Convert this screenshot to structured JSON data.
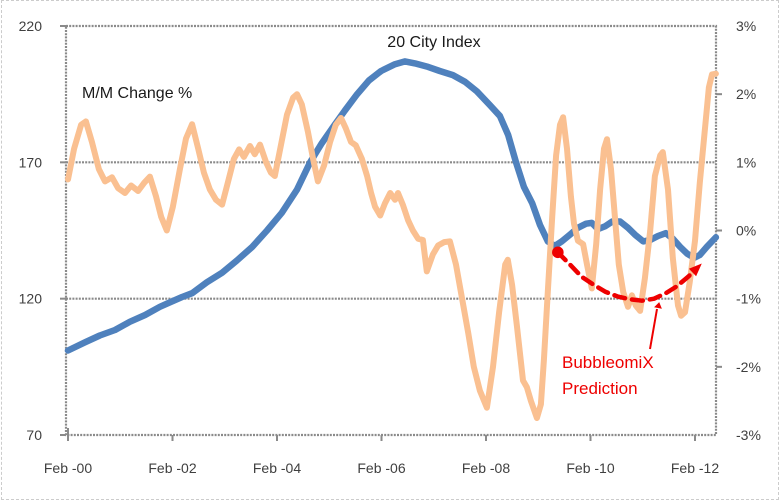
{
  "chart_data": {
    "type": "line",
    "description": "Dual-axis line chart of home price 20 City Index (left axis) and its month-over-month percent change (right axis) from Feb 2000 to mid 2012, with a red dashed BubbleomiX Prediction curve",
    "in_plot_labels": {
      "index_label": "20 City Index",
      "mm_label": "M/M Change %"
    },
    "x_axis": {
      "unit": "months since Feb 2000",
      "tick_labels": [
        "Feb -00",
        "Feb -02",
        "Feb -04",
        "Feb -06",
        "Feb -08",
        "Feb -10",
        "Feb -12"
      ],
      "tick_months": [
        0,
        24,
        48,
        72,
        96,
        120,
        144
      ]
    },
    "left_axis": {
      "min": 70,
      "max": 220,
      "tick_values": [
        220,
        170,
        120,
        70
      ],
      "tick_labels": [
        "220",
        "170",
        "120",
        "70"
      ]
    },
    "right_axis": {
      "min": -3,
      "max": 3,
      "tick_values": [
        3,
        2,
        1,
        0,
        -1,
        -2,
        -3
      ],
      "tick_labels": [
        "3%",
        "2%",
        "1%",
        "0%",
        "-1%",
        "-2%",
        "-3%"
      ],
      "gridlines": [
        1,
        -1
      ],
      "minor_ticks": [
        2,
        0,
        -2
      ]
    },
    "grid_color": "#8a8a8a",
    "label_color": "#3f3f3f",
    "title_color": "#1a1a1a",
    "series": [
      {
        "name": "20 City Index",
        "axis": "left",
        "color": "#4f81bd",
        "width": 6.5,
        "points": [
          [
            0,
            101
          ],
          [
            3.9,
            104
          ],
          [
            7.3,
            106.5
          ],
          [
            10.8,
            108.5
          ],
          [
            14.2,
            111.5
          ],
          [
            17.7,
            114
          ],
          [
            21.1,
            117
          ],
          [
            23.9,
            119
          ],
          [
            26.2,
            120.6
          ],
          [
            28.5,
            122
          ],
          [
            31.9,
            126
          ],
          [
            35.4,
            129.5
          ],
          [
            38.8,
            134
          ],
          [
            42.3,
            139
          ],
          [
            45.7,
            145
          ],
          [
            49.1,
            151.5
          ],
          [
            52.6,
            160
          ],
          [
            55.6,
            170
          ],
          [
            58.3,
            177
          ],
          [
            60.9,
            183
          ],
          [
            63.6,
            189
          ],
          [
            66.4,
            195
          ],
          [
            69.1,
            200
          ],
          [
            71.9,
            203.5
          ],
          [
            75.1,
            206
          ],
          [
            77.4,
            207
          ],
          [
            79.7,
            206.3
          ],
          [
            82.7,
            205
          ],
          [
            85.4,
            203.5
          ],
          [
            88.4,
            202
          ],
          [
            91.2,
            199.5
          ],
          [
            93.9,
            196
          ],
          [
            96.9,
            191
          ],
          [
            99.2,
            187
          ],
          [
            101.1,
            180
          ],
          [
            102.9,
            170
          ],
          [
            104.7,
            161
          ],
          [
            106.6,
            155
          ],
          [
            108.4,
            147
          ],
          [
            110.2,
            141
          ],
          [
            111.8,
            139.3
          ],
          [
            113.4,
            141
          ],
          [
            115.3,
            143.5
          ],
          [
            117.1,
            146
          ],
          [
            119,
            147.5
          ],
          [
            120.3,
            147.8
          ],
          [
            121.7,
            145.5
          ],
          [
            123.3,
            146.5
          ],
          [
            125,
            148.3
          ],
          [
            126.8,
            148.3
          ],
          [
            128.6,
            146
          ],
          [
            130.2,
            143.5
          ],
          [
            132.1,
            141
          ],
          [
            133.7,
            141.5
          ],
          [
            135.5,
            143
          ],
          [
            137.3,
            144
          ],
          [
            138.9,
            142
          ],
          [
            140.6,
            139
          ],
          [
            142.2,
            136.5
          ],
          [
            143.8,
            135
          ],
          [
            145.1,
            136
          ],
          [
            146.7,
            139
          ],
          [
            148.8,
            142.5
          ]
        ]
      },
      {
        "name": "M/M Change %",
        "axis": "right",
        "color": "#fac091",
        "width": 6,
        "points": [
          [
            0,
            0.75
          ],
          [
            1.4,
            1.2
          ],
          [
            3,
            1.55
          ],
          [
            4.1,
            1.6
          ],
          [
            5.5,
            1.3
          ],
          [
            7.1,
            0.9
          ],
          [
            8.5,
            0.72
          ],
          [
            10.1,
            0.78
          ],
          [
            11.5,
            0.62
          ],
          [
            13.1,
            0.55
          ],
          [
            14.5,
            0.66
          ],
          [
            16.1,
            0.58
          ],
          [
            17.5,
            0.7
          ],
          [
            18.8,
            0.79
          ],
          [
            20.2,
            0.5
          ],
          [
            21.4,
            0.2
          ],
          [
            22.7,
            0.0
          ],
          [
            24.1,
            0.35
          ],
          [
            25.7,
            0.9
          ],
          [
            27.1,
            1.35
          ],
          [
            28.5,
            1.56
          ],
          [
            29.9,
            1.2
          ],
          [
            31.2,
            0.85
          ],
          [
            32.6,
            0.6
          ],
          [
            34,
            0.45
          ],
          [
            35.4,
            0.38
          ],
          [
            36.7,
            0.7
          ],
          [
            38.1,
            1.05
          ],
          [
            39.3,
            1.19
          ],
          [
            40.4,
            1.08
          ],
          [
            41.8,
            1.24
          ],
          [
            42.9,
            1.12
          ],
          [
            44.1,
            1.26
          ],
          [
            45.5,
            1.0
          ],
          [
            46.6,
            0.85
          ],
          [
            47.5,
            0.8
          ],
          [
            48.9,
            1.25
          ],
          [
            50.3,
            1.7
          ],
          [
            51.7,
            1.95
          ],
          [
            52.6,
            2.0
          ],
          [
            53.7,
            1.85
          ],
          [
            55.1,
            1.45
          ],
          [
            56.3,
            1.05
          ],
          [
            57.4,
            0.72
          ],
          [
            58.8,
            0.95
          ],
          [
            60.2,
            1.3
          ],
          [
            61.5,
            1.55
          ],
          [
            62.7,
            1.65
          ],
          [
            63.8,
            1.5
          ],
          [
            65,
            1.3
          ],
          [
            66.1,
            1.25
          ],
          [
            67.5,
            1.05
          ],
          [
            68.7,
            0.8
          ],
          [
            69.6,
            0.55
          ],
          [
            70.5,
            0.35
          ],
          [
            71.7,
            0.22
          ],
          [
            72.8,
            0.4
          ],
          [
            74,
            0.55
          ],
          [
            75.1,
            0.45
          ],
          [
            75.8,
            0.55
          ],
          [
            76.9,
            0.38
          ],
          [
            78.1,
            0.15
          ],
          [
            79.2,
            0.0
          ],
          [
            80.4,
            -0.12
          ],
          [
            81.5,
            -0.14
          ],
          [
            82.4,
            -0.6
          ],
          [
            83.8,
            -0.35
          ],
          [
            85,
            -0.22
          ],
          [
            86.4,
            -0.17
          ],
          [
            87.7,
            -0.16
          ],
          [
            89.1,
            -0.5
          ],
          [
            90.5,
            -1.0
          ],
          [
            91.9,
            -1.5
          ],
          [
            93.2,
            -2.0
          ],
          [
            94.6,
            -2.35
          ],
          [
            96.2,
            -2.6
          ],
          [
            97.6,
            -2.0
          ],
          [
            99,
            -1.2
          ],
          [
            100.4,
            -0.5
          ],
          [
            101,
            -0.43
          ],
          [
            102,
            -0.8
          ],
          [
            103.1,
            -1.4
          ],
          [
            104.5,
            -2.2
          ],
          [
            105.4,
            -2.3
          ],
          [
            106.3,
            -2.5
          ],
          [
            107.7,
            -2.75
          ],
          [
            108.6,
            -2.55
          ],
          [
            109.3,
            -1.9
          ],
          [
            110.2,
            -0.9
          ],
          [
            111.2,
            0.2
          ],
          [
            112.1,
            1.1
          ],
          [
            113,
            1.55
          ],
          [
            113.7,
            1.66
          ],
          [
            114.6,
            1.2
          ],
          [
            115.5,
            0.5
          ],
          [
            116.2,
            0.1
          ],
          [
            117.1,
            -0.15
          ],
          [
            118.3,
            -0.2
          ],
          [
            119.2,
            -0.5
          ],
          [
            120.3,
            -0.85
          ],
          [
            121.3,
            -0.2
          ],
          [
            122.2,
            0.6
          ],
          [
            123.1,
            1.2
          ],
          [
            123.8,
            1.34
          ],
          [
            124.7,
            0.9
          ],
          [
            125.6,
            0.2
          ],
          [
            126.5,
            -0.5
          ],
          [
            127.5,
            -0.9
          ],
          [
            128.6,
            -1.12
          ],
          [
            129.5,
            -0.95
          ],
          [
            130.4,
            -1.1
          ],
          [
            131.4,
            -1.18
          ],
          [
            132.5,
            -0.7
          ],
          [
            133.7,
            0.0
          ],
          [
            134.8,
            0.8
          ],
          [
            136,
            1.1
          ],
          [
            136.6,
            1.15
          ],
          [
            137.8,
            0.6
          ],
          [
            138.9,
            -0.4
          ],
          [
            140.1,
            -1.1
          ],
          [
            140.8,
            -1.25
          ],
          [
            141.7,
            -1.2
          ],
          [
            142.8,
            -0.75
          ],
          [
            144,
            -0.15
          ],
          [
            145.1,
            0.7
          ],
          [
            146.3,
            1.5
          ],
          [
            147.2,
            2.1
          ],
          [
            147.9,
            2.29
          ],
          [
            148.8,
            2.3
          ]
        ]
      },
      {
        "name": "BubbleomiX Prediction",
        "axis": "right",
        "color": "#ee0000",
        "width": 4.5,
        "dash": "11 7",
        "start_dot": true,
        "end_arrow": true,
        "points": [
          [
            112.5,
            -0.32
          ],
          [
            115.3,
            -0.5
          ],
          [
            118,
            -0.68
          ],
          [
            120.8,
            -0.8
          ],
          [
            123.5,
            -0.9
          ],
          [
            126.3,
            -0.97
          ],
          [
            129.1,
            -1.01
          ],
          [
            131.8,
            -1.03
          ],
          [
            134.6,
            -1.0
          ],
          [
            137.3,
            -0.92
          ],
          [
            139.8,
            -0.82
          ],
          [
            142.4,
            -0.68
          ],
          [
            144.5,
            -0.55
          ]
        ]
      }
    ],
    "annotation": {
      "line1": "BubbleomiX",
      "line2": "Prediction",
      "color": "#ee0000"
    }
  }
}
